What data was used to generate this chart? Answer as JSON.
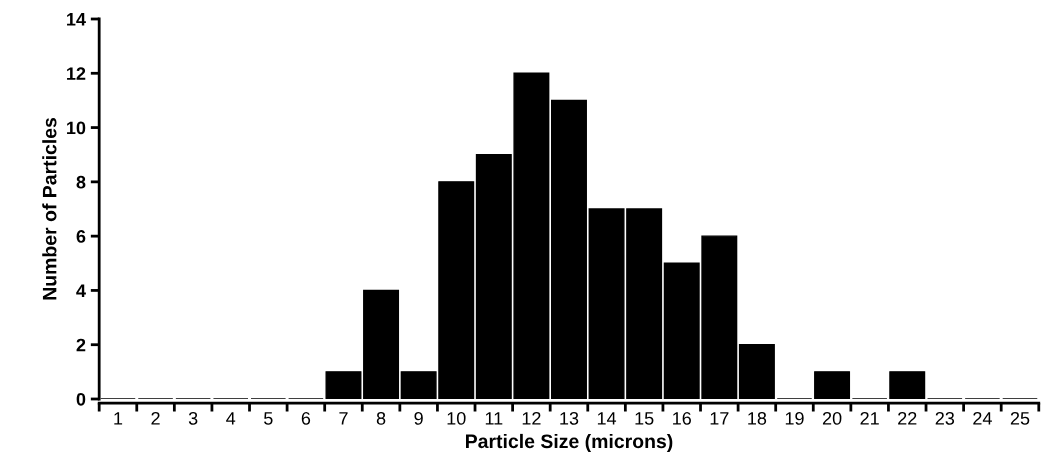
{
  "chart_data": {
    "type": "bar",
    "xlabel": "Particle Size (microns)",
    "ylabel": "Number of Particles",
    "categories": [
      "1",
      "2",
      "3",
      "4",
      "5",
      "6",
      "7",
      "8",
      "9",
      "10",
      "11",
      "12",
      "13",
      "14",
      "15",
      "16",
      "17",
      "18",
      "19",
      "20",
      "21",
      "22",
      "23",
      "24",
      "25"
    ],
    "values": [
      0,
      0,
      0,
      0,
      0,
      0,
      1,
      4,
      1,
      8,
      9,
      12,
      11,
      7,
      7,
      5,
      6,
      2,
      0,
      1,
      0,
      1,
      0,
      0,
      0
    ],
    "color": "#000000",
    "ylim": [
      0,
      14
    ],
    "yticks": [
      0,
      2,
      4,
      6,
      8,
      10,
      12,
      14
    ],
    "grid": false,
    "legend": false
  }
}
